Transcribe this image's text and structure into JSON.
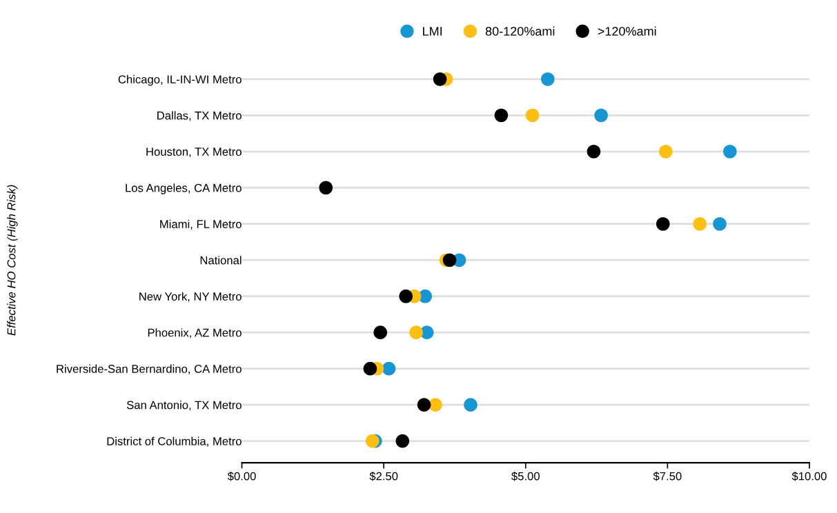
{
  "chart_data": {
    "type": "scatter",
    "ylabel": "Effective HO Cost (High Risk)",
    "categories": [
      "Chicago, IL-IN-WI Metro",
      "Dallas, TX Metro",
      "Houston, TX Metro",
      "Los Angeles, CA Metro",
      "Miami, FL Metro",
      "National",
      "New York, NY Metro",
      "Phoenix, AZ Metro",
      "Riverside-San Bernardino, CA Metro",
      "San Antonio, TX Metro",
      "District of Columbia, Metro"
    ],
    "orientation": "horizontal",
    "series": [
      {
        "name": "LMI",
        "color": "#1696d2",
        "values": [
          5.39,
          6.33,
          8.6,
          null,
          8.42,
          3.83,
          3.23,
          3.26,
          2.59,
          4.03,
          2.35
        ]
      },
      {
        "name": "80-120%ami",
        "color": "#fdbf11",
        "values": [
          3.6,
          5.12,
          7.47,
          null,
          8.07,
          3.6,
          3.04,
          3.07,
          2.38,
          3.41,
          2.3
        ]
      },
      {
        "name": ">120%ami",
        "color": "#000000",
        "values": [
          3.49,
          4.57,
          6.2,
          1.48,
          7.42,
          3.66,
          2.89,
          2.44,
          2.26,
          3.21,
          2.83
        ]
      }
    ],
    "xlim": [
      0,
      10
    ],
    "xticks": [
      {
        "value": 0,
        "label": "$0.00"
      },
      {
        "value": 2.5,
        "label": "$2.50"
      },
      {
        "value": 5,
        "label": "$5.00"
      },
      {
        "value": 7.5,
        "label": "$7.50"
      },
      {
        "value": 10,
        "label": "$10.00"
      }
    ],
    "grid": "y",
    "legend": "top",
    "marker": "circle"
  }
}
